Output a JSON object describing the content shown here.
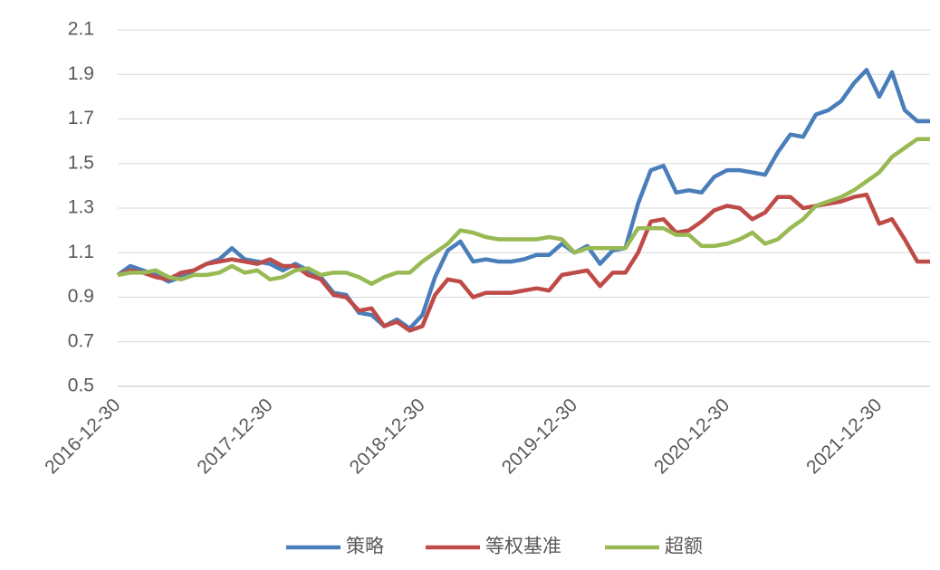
{
  "chart_data": {
    "type": "line",
    "categories": [
      "2016-12-30",
      null,
      null,
      null,
      null,
      null,
      null,
      null,
      null,
      null,
      null,
      null,
      "2017-12-30",
      null,
      null,
      null,
      null,
      null,
      null,
      null,
      null,
      null,
      null,
      null,
      "2018-12-30",
      null,
      null,
      null,
      null,
      null,
      null,
      null,
      null,
      null,
      null,
      null,
      "2019-12-30",
      null,
      null,
      null,
      null,
      null,
      null,
      null,
      null,
      null,
      null,
      null,
      "2020-12-30",
      null,
      null,
      null,
      null,
      null,
      null,
      null,
      null,
      null,
      null,
      null,
      "2021-12-30",
      null,
      null,
      null,
      null
    ],
    "series": [
      {
        "name": "策略",
        "color": "#4a7ebb",
        "values": [
          1.0,
          1.04,
          1.02,
          1.0,
          0.97,
          0.99,
          1.02,
          1.05,
          1.07,
          1.12,
          1.07,
          1.06,
          1.05,
          1.02,
          1.05,
          1.02,
          0.99,
          0.92,
          0.91,
          0.83,
          0.82,
          0.77,
          0.8,
          0.76,
          0.82,
          0.99,
          1.11,
          1.15,
          1.06,
          1.07,
          1.06,
          1.06,
          1.07,
          1.09,
          1.09,
          1.14,
          1.1,
          1.13,
          1.05,
          1.11,
          1.12,
          1.32,
          1.47,
          1.49,
          1.37,
          1.38,
          1.37,
          1.44,
          1.47,
          1.47,
          1.46,
          1.45,
          1.55,
          1.63,
          1.62,
          1.72,
          1.74,
          1.78,
          1.86,
          1.92,
          1.8,
          1.91,
          1.74,
          1.69,
          1.69
        ]
      },
      {
        "name": "等权基准",
        "color": "#be4b48",
        "values": [
          1.0,
          1.02,
          1.01,
          0.99,
          0.98,
          1.01,
          1.02,
          1.05,
          1.06,
          1.07,
          1.06,
          1.05,
          1.07,
          1.04,
          1.04,
          1.0,
          0.98,
          0.91,
          0.9,
          0.84,
          0.85,
          0.77,
          0.79,
          0.75,
          0.77,
          0.91,
          0.98,
          0.97,
          0.9,
          0.92,
          0.92,
          0.92,
          0.93,
          0.94,
          0.93,
          1.0,
          1.01,
          1.02,
          0.95,
          1.01,
          1.01,
          1.1,
          1.24,
          1.25,
          1.19,
          1.2,
          1.24,
          1.29,
          1.31,
          1.3,
          1.25,
          1.28,
          1.35,
          1.35,
          1.3,
          1.31,
          1.32,
          1.33,
          1.35,
          1.36,
          1.23,
          1.25,
          1.16,
          1.06,
          1.06
        ]
      },
      {
        "name": "超额",
        "color": "#98b954",
        "values": [
          1.0,
          1.01,
          1.01,
          1.02,
          0.99,
          0.98,
          1.0,
          1.0,
          1.01,
          1.04,
          1.01,
          1.02,
          0.98,
          0.99,
          1.02,
          1.03,
          1.0,
          1.01,
          1.01,
          0.99,
          0.96,
          0.99,
          1.01,
          1.01,
          1.06,
          1.1,
          1.14,
          1.2,
          1.19,
          1.17,
          1.16,
          1.16,
          1.16,
          1.16,
          1.17,
          1.16,
          1.1,
          1.12,
          1.12,
          1.12,
          1.12,
          1.21,
          1.21,
          1.21,
          1.18,
          1.18,
          1.13,
          1.13,
          1.14,
          1.16,
          1.19,
          1.14,
          1.16,
          1.21,
          1.25,
          1.31,
          1.33,
          1.35,
          1.38,
          1.42,
          1.46,
          1.53,
          1.57,
          1.61,
          1.61
        ]
      }
    ],
    "ylim": [
      0.5,
      2.1
    ],
    "yticks": [
      0.5,
      0.7,
      0.9,
      1.1,
      1.3,
      1.5,
      1.7,
      1.9,
      2.1
    ],
    "grid": true,
    "legend": "bottom"
  }
}
